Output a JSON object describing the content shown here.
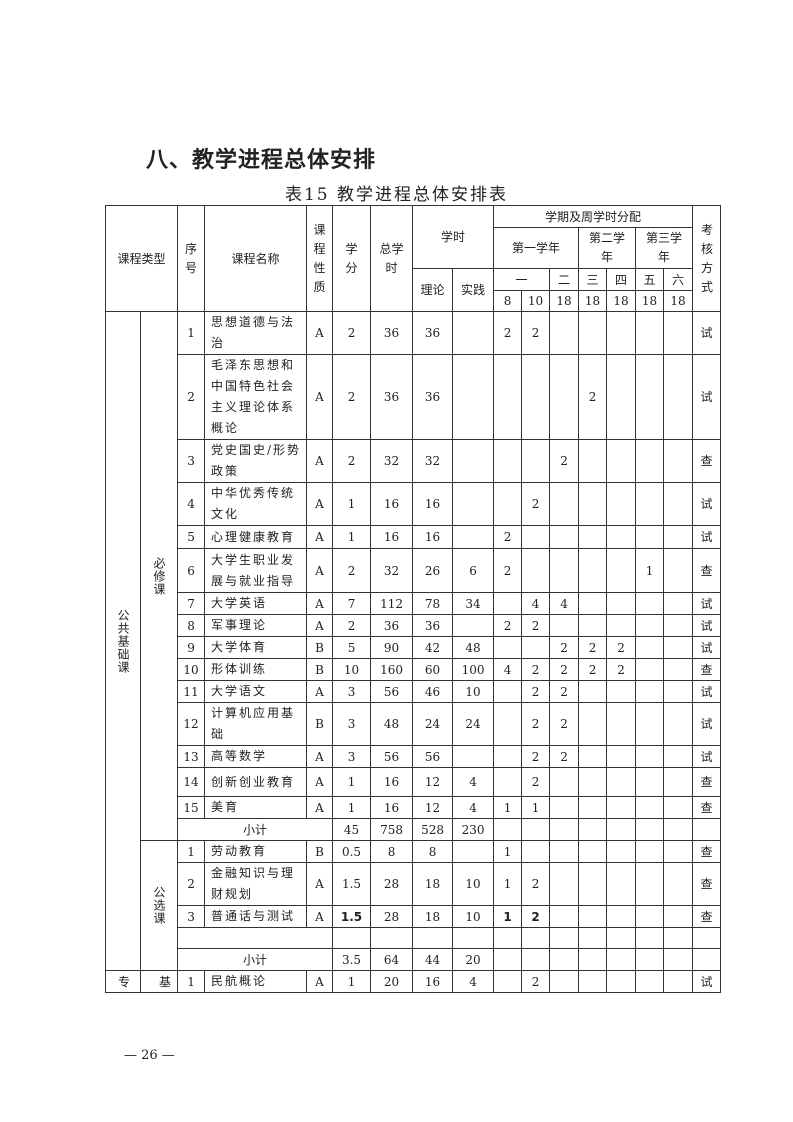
{
  "section_title": "八、教学进程总体安排",
  "table_caption": "表15   教学进程总体安排表",
  "header": {
    "course_type": "课程类型",
    "seq": "序号",
    "course_name": "课程名称",
    "course_nature": "课程性质",
    "credit": "学分",
    "total_hours": "总学时",
    "hours": "学时",
    "theory": "理论",
    "practice": "实践",
    "semester_dist": "学期及周学时分配",
    "year1": "第一学年",
    "year2": "第二学年",
    "year3": "第三学年",
    "terms": [
      "一",
      "二",
      "三",
      "四",
      "五",
      "六"
    ],
    "weeks": [
      "8",
      "10",
      "18",
      "18",
      "18",
      "18",
      "18"
    ],
    "exam_method": "考核方式"
  },
  "groups": {
    "public_basic": "公共基础课",
    "required": "必修课",
    "elective": "公选课",
    "professional_a": "专",
    "professional_b": "基"
  },
  "required_rows": [
    {
      "no": "1",
      "name": "思想道德与法治",
      "nature": "A",
      "credit": "2",
      "total": "36",
      "theory": "36",
      "practice": "",
      "w": [
        "2",
        "2",
        "",
        "",
        "",
        "",
        ""
      ],
      "exam": "试"
    },
    {
      "no": "2",
      "name": "毛泽东思想和中国特色社会主义理论体系概论",
      "nature": "A",
      "credit": "2",
      "total": "36",
      "theory": "36",
      "practice": "",
      "w": [
        "",
        "",
        "",
        "2",
        "",
        "",
        ""
      ],
      "exam": "试"
    },
    {
      "no": "3",
      "name": "党史国史/形势政策",
      "nature": "A",
      "credit": "2",
      "total": "32",
      "theory": "32",
      "practice": "",
      "w": [
        "",
        "",
        "2",
        "",
        "",
        "",
        ""
      ],
      "exam": "查"
    },
    {
      "no": "4",
      "name": "中华优秀传统文化",
      "nature": "A",
      "credit": "1",
      "total": "16",
      "theory": "16",
      "practice": "",
      "w": [
        "",
        "2",
        "",
        "",
        "",
        "",
        ""
      ],
      "exam": "试"
    },
    {
      "no": "5",
      "name": "心理健康教育",
      "nature": "A",
      "credit": "1",
      "total": "16",
      "theory": "16",
      "practice": "",
      "w": [
        "2",
        "",
        "",
        "",
        "",
        "",
        ""
      ],
      "exam": "试"
    },
    {
      "no": "6",
      "name": "大学生职业发展与就业指导",
      "nature": "A",
      "credit": "2",
      "total": "32",
      "theory": "26",
      "practice": "6",
      "w": [
        "2",
        "",
        "",
        "",
        "",
        "1",
        ""
      ],
      "exam": "查"
    },
    {
      "no": "7",
      "name": "大学英语",
      "nature": "A",
      "credit": "7",
      "total": "112",
      "theory": "78",
      "practice": "34",
      "w": [
        "",
        "4",
        "4",
        "",
        "",
        "",
        ""
      ],
      "exam": "试"
    },
    {
      "no": "8",
      "name": "军事理论",
      "nature": "A",
      "credit": "2",
      "total": "36",
      "theory": "36",
      "practice": "",
      "w": [
        "2",
        "2",
        "",
        "",
        "",
        "",
        ""
      ],
      "exam": "试"
    },
    {
      "no": "9",
      "name": "大学体育",
      "nature": "B",
      "credit": "5",
      "total": "90",
      "theory": "42",
      "practice": "48",
      "w": [
        "",
        "",
        "2",
        "2",
        "2",
        "",
        ""
      ],
      "exam": "试"
    },
    {
      "no": "10",
      "name": "形体训练",
      "nature": "B",
      "credit": "10",
      "total": "160",
      "theory": "60",
      "practice": "100",
      "w": [
        "4",
        "2",
        "2",
        "2",
        "2",
        "",
        ""
      ],
      "exam": "查"
    },
    {
      "no": "11",
      "name": "大学语文",
      "nature": "A",
      "credit": "3",
      "total": "56",
      "theory": "46",
      "practice": "10",
      "w": [
        "",
        "2",
        "2",
        "",
        "",
        "",
        ""
      ],
      "exam": "试"
    },
    {
      "no": "12",
      "name": "计算机应用基础",
      "nature": "B",
      "credit": "3",
      "total": "48",
      "theory": "24",
      "practice": "24",
      "w": [
        "",
        "2",
        "2",
        "",
        "",
        "",
        ""
      ],
      "exam": "试"
    },
    {
      "no": "13",
      "name": "高等数学",
      "nature": "A",
      "credit": "3",
      "total": "56",
      "theory": "56",
      "practice": "",
      "w": [
        "",
        "2",
        "2",
        "",
        "",
        "",
        ""
      ],
      "exam": "试"
    },
    {
      "no": "14",
      "name": "创新创业教育",
      "nature": "A",
      "credit": "1",
      "total": "16",
      "theory": "12",
      "practice": "4",
      "w": [
        "",
        "2",
        "",
        "",
        "",
        "",
        ""
      ],
      "exam": "查"
    },
    {
      "no": "15",
      "name": "美育",
      "nature": "A",
      "credit": "1",
      "total": "16",
      "theory": "12",
      "practice": "4",
      "w": [
        "1",
        "1",
        "",
        "",
        "",
        "",
        ""
      ],
      "exam": "查"
    }
  ],
  "required_subtotal": {
    "label": "小计",
    "credit": "45",
    "total": "758",
    "theory": "528",
    "practice": "230"
  },
  "elective_rows": [
    {
      "no": "1",
      "name": "劳动教育",
      "nature": "B",
      "credit": "0.5",
      "total": "8",
      "theory": "8",
      "practice": "",
      "w": [
        "1",
        "",
        "",
        "",
        "",
        "",
        ""
      ],
      "exam": "查"
    },
    {
      "no": "2",
      "name": "金融知识与理财规划",
      "nature": "A",
      "credit": "1.5",
      "total": "28",
      "theory": "18",
      "practice": "10",
      "w": [
        "1",
        "2",
        "",
        "",
        "",
        "",
        ""
      ],
      "exam": "查"
    },
    {
      "no": "3",
      "name": "普通话与测试",
      "nature": "A",
      "credit": "1.5",
      "total": "28",
      "theory": "18",
      "practice": "10",
      "w": [
        "1",
        "2",
        "",
        "",
        "",
        "",
        ""
      ],
      "exam": "查",
      "bold": true
    }
  ],
  "elective_subtotal": {
    "label": "小计",
    "credit": "3.5",
    "total": "64",
    "theory": "44",
    "practice": "20"
  },
  "professional_rows": [
    {
      "no": "1",
      "name": "民航概论",
      "nature": "A",
      "credit": "1",
      "total": "20",
      "theory": "16",
      "practice": "4",
      "w": [
        "",
        "2",
        "",
        "",
        "",
        "",
        ""
      ],
      "exam": "试"
    }
  ],
  "page_number": "—  26  —"
}
